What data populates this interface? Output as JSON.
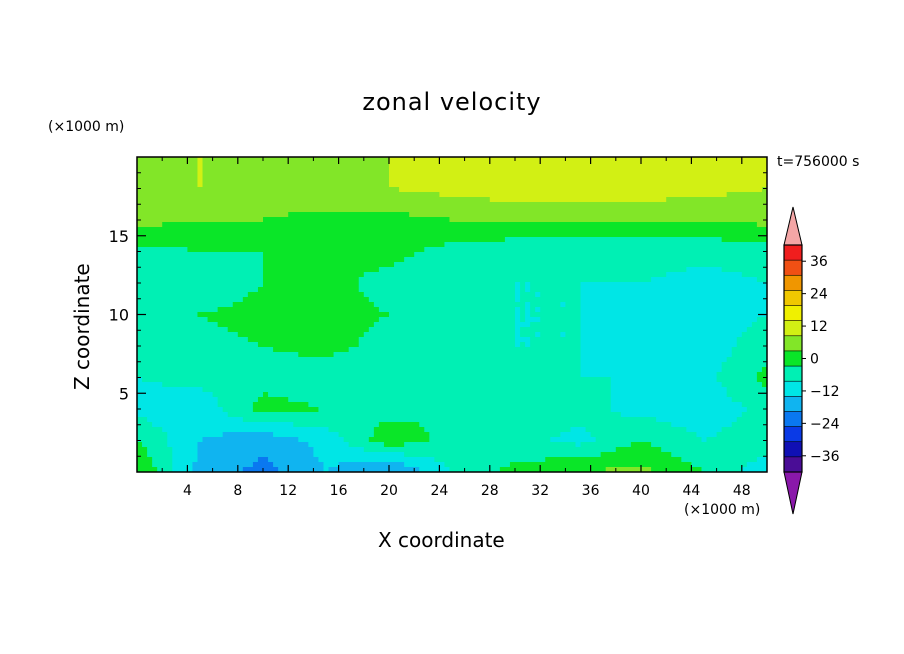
{
  "chart_data": {
    "type": "heatmap",
    "title": "zonal velocity",
    "xlabel": "X coordinate",
    "ylabel": "Z coordinate",
    "x_unit": "(×1000 m)",
    "y_unit": "(×1000 m)",
    "time_label": "t=756000 s",
    "x_ticks": [
      4,
      8,
      12,
      16,
      20,
      24,
      28,
      32,
      36,
      40,
      44,
      48
    ],
    "y_ticks": [
      5,
      10,
      15
    ],
    "xlim": [
      0,
      50
    ],
    "ylim": [
      0,
      20
    ],
    "colorbar": {
      "tick_labels": [
        "36",
        "24",
        "12",
        "0",
        "−12",
        "−24",
        "−36"
      ],
      "tick_values": [
        36,
        24,
        12,
        0,
        -12,
        -24,
        -36
      ],
      "levels": [
        -42,
        -36,
        -30,
        -24,
        -18,
        -12,
        -6,
        0,
        6,
        12,
        18,
        24,
        30,
        36,
        42
      ],
      "colors": [
        "#8a18aa",
        "#4a0d96",
        "#1010b4",
        "#0a3ae6",
        "#0a78f0",
        "#10b4f0",
        "#00e6e6",
        "#00f0b4",
        "#0ae628",
        "#82e628",
        "#d2f014",
        "#f0f000",
        "#f0c800",
        "#f09600",
        "#f05014",
        "#f01e1e",
        "#f4a6a6"
      ],
      "extend": "both"
    },
    "field_description_grid": {
      "x": [
        0,
        5,
        10,
        15,
        20,
        25,
        30,
        35,
        40,
        45,
        50
      ],
      "z": [
        0,
        2,
        4,
        6,
        8,
        10,
        12,
        14,
        16,
        18,
        20
      ],
      "u": [
        [
          6,
          -14,
          -20,
          -12,
          -20,
          -6,
          2,
          6,
          8,
          0,
          -10
        ],
        [
          0,
          -12,
          -16,
          -10,
          4,
          -2,
          -4,
          -8,
          0,
          -6,
          -2
        ],
        [
          -8,
          -10,
          2,
          0,
          -2,
          0,
          0,
          -4,
          -8,
          -10,
          -4
        ],
        [
          -6,
          -4,
          -2,
          -4,
          -4,
          -6,
          -4,
          -6,
          -6,
          -8,
          2
        ],
        [
          -4,
          -2,
          0,
          2,
          -2,
          -4,
          -6,
          -6,
          -10,
          -10,
          -2
        ],
        [
          -4,
          0,
          2,
          2,
          0,
          -4,
          -6,
          -6,
          -8,
          -10,
          -6
        ],
        [
          -4,
          -4,
          0,
          2,
          -2,
          -6,
          -6,
          -6,
          -6,
          -8,
          -6
        ],
        [
          -2,
          0,
          0,
          0,
          2,
          -2,
          -4,
          -4,
          -4,
          -4,
          -4
        ],
        [
          8,
          6,
          6,
          4,
          4,
          6,
          6,
          6,
          6,
          6,
          8
        ],
        [
          10,
          12,
          10,
          10,
          12,
          14,
          16,
          16,
          16,
          14,
          12
        ],
        [
          12,
          12,
          10,
          12,
          12,
          14,
          16,
          18,
          18,
          14,
          12
        ]
      ]
    }
  }
}
